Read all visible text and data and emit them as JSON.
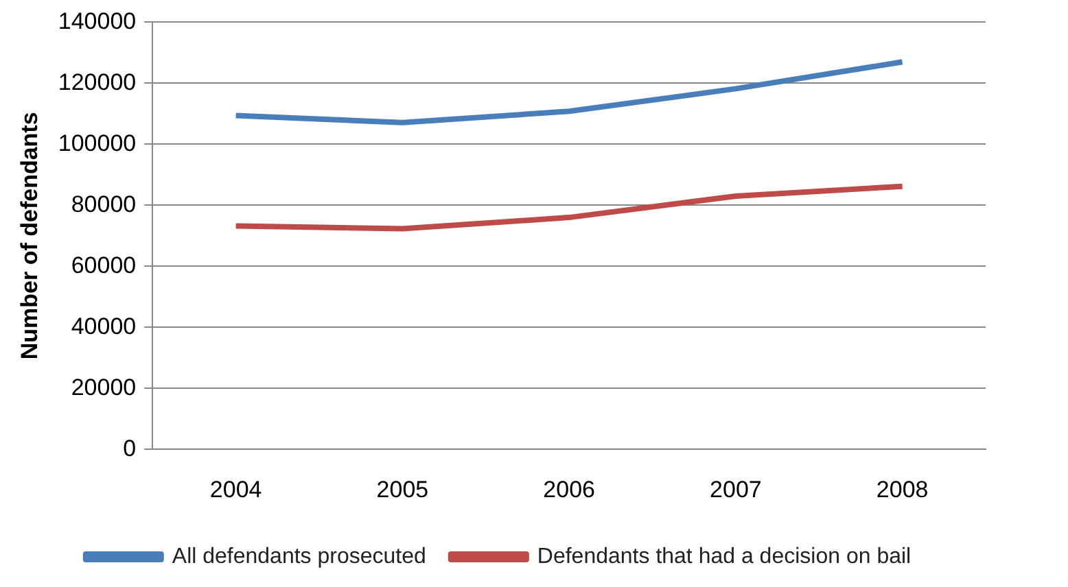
{
  "chart_data": {
    "type": "line",
    "ylabel": "Number of defendants",
    "categories": [
      "2004",
      "2005",
      "2006",
      "2007",
      "2008"
    ],
    "series": [
      {
        "name": "All defendants prosecuted",
        "color": "#4a7ebb",
        "values": [
          109400,
          107100,
          110800,
          118200,
          127000
        ]
      },
      {
        "name": "Defendants that had a decision on bail",
        "color": "#be4b48",
        "values": [
          73200,
          72300,
          76000,
          83000,
          86200
        ]
      }
    ],
    "ylim": [
      0,
      140000
    ],
    "yticks": [
      0,
      20000,
      40000,
      60000,
      80000,
      100000,
      120000,
      140000
    ],
    "grid": "y",
    "legend": "bottom",
    "marker": "none",
    "line_style": "solid"
  }
}
